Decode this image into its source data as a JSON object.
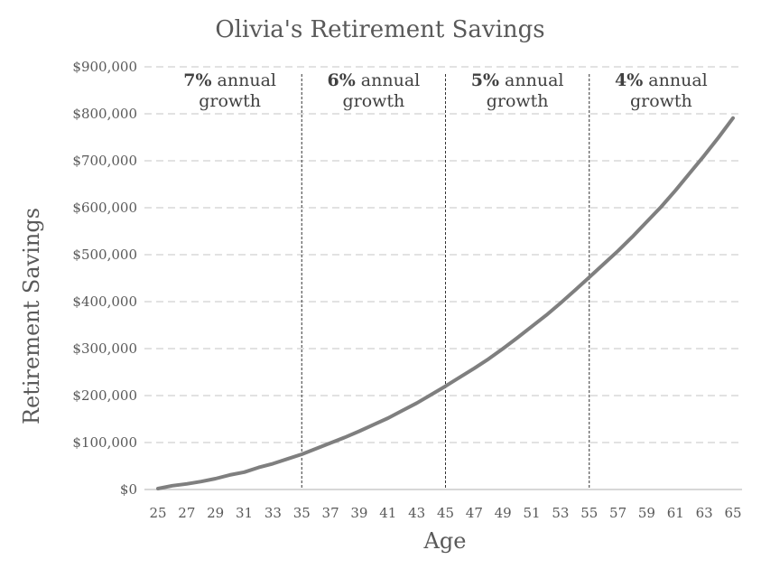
{
  "chart_data": {
    "type": "line",
    "title": "Olivia's Retirement Savings",
    "xlabel": "Age",
    "ylabel": "Retirement Savings",
    "xlim": [
      25,
      65
    ],
    "ylim": [
      0,
      900000
    ],
    "yticks": [
      0,
      100000,
      200000,
      300000,
      400000,
      500000,
      600000,
      700000,
      800000,
      900000
    ],
    "ytick_labels": [
      "$0",
      "$100,000",
      "$200,000",
      "$300,000",
      "$400,000",
      "$500,000",
      "$600,000",
      "$700,000",
      "$800,000",
      "$900,000"
    ],
    "xticks": [
      25,
      27,
      29,
      31,
      33,
      35,
      37,
      39,
      41,
      43,
      45,
      47,
      49,
      51,
      53,
      55,
      57,
      59,
      61,
      63,
      65
    ],
    "xtick_labels": [
      "25",
      "27",
      "29",
      "31",
      "33",
      "35",
      "37",
      "39",
      "41",
      "43",
      "45",
      "47",
      "49",
      "51",
      "53",
      "55",
      "57",
      "59",
      "61",
      "63",
      "65"
    ],
    "grid": true,
    "dividers": [
      35,
      45,
      55
    ],
    "annotations": [
      {
        "bold": "7%",
        "text1": " annual",
        "text2": "growth",
        "x_from": 25,
        "x_to": 35
      },
      {
        "bold": "6%",
        "text1": " annual",
        "text2": "growth",
        "x_from": 35,
        "x_to": 45
      },
      {
        "bold": "5%",
        "text1": " annual",
        "text2": "growth",
        "x_from": 45,
        "x_to": 55
      },
      {
        "bold": "4%",
        "text1": " annual",
        "text2": "growth",
        "x_from": 55,
        "x_to": 65
      }
    ],
    "series": [
      {
        "color": "#7f7f7f",
        "x": [
          25,
          26,
          27,
          28,
          29,
          30,
          31,
          32,
          33,
          34,
          35,
          36,
          37,
          38,
          39,
          40,
          41,
          42,
          43,
          44,
          45,
          46,
          47,
          48,
          49,
          50,
          51,
          52,
          53,
          54,
          55,
          56,
          57,
          58,
          59,
          60,
          61,
          62,
          63,
          64,
          65
        ],
        "y": [
          2000,
          8000,
          12000,
          17000,
          23000,
          31000,
          37000,
          47000,
          55000,
          65000,
          75000,
          87000,
          99000,
          111000,
          124000,
          138000,
          152000,
          168000,
          184000,
          202000,
          220000,
          239000,
          258000,
          278000,
          300000,
          323000,
          347000,
          371000,
          397000,
          424000,
          452000,
          480000,
          508000,
          538000,
          570000,
          602000,
          637000,
          674000,
          711000,
          750000,
          791000
        ]
      }
    ]
  }
}
